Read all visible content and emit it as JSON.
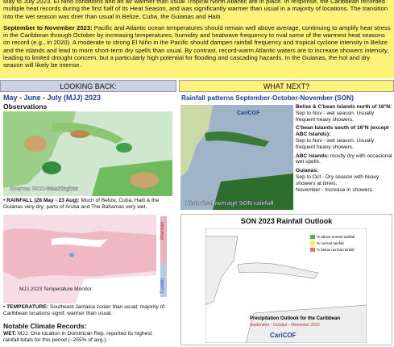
{
  "intro": {
    "text": "May to July 2023. El Niño conditions and an air warmer than usual Tropical North Atlantic are in place. In response, the Caribbean recorded multiple heat records during the first half of its Heat Season, and was significantly warmer than usual in a majority of locations. The transition into the wet season was drier than usual in Belize, Cuba, the Guianas and Haiti."
  },
  "outlook": {
    "heading": "September to November 2023:",
    "text": "Pacific and Atlantic ocean temperatures should remain well above average, continuing to amplify heat stress in the Caribbean through October by increasing temperatures, humidity and heatwave frequency to rival some of the warmest heat seasons on record (e.g., in 2020). A moderate to strong El Niño in the Pacific should dampen rainfall frequency and tropical cyclone intensity in Belize and the islands and lead to more short-term dry spells than usual. By contrast, record-warm Atlantic waters are to increase showers intensity, leading to limited drought concern, but a particularly high potential for flooding and cascading hazards. In the Guianas, the hot and dry season will likely be intense."
  },
  "looking_back": {
    "header": "LOOKING BACK:",
    "period": "May - June - July (MJJ) 2023",
    "subtitle": "Observations",
    "map_source": "Source: RCC-Washington",
    "rainfall": {
      "label": "RAINFALL (28 May - 23 Aug):",
      "text": "Much of Belize, Cuba, Haiti & the Guianas very dry; parts of Aruba and The Bahamas very wet."
    },
    "temp_map": {
      "warmer": "Warmer",
      "cooler": "Cooler",
      "caption": "MJJ 2023 Temperature Monitor"
    },
    "temperature": {
      "label": "TEMPERATURE:",
      "text": "Southeast Jamaica cooler than usual; majority of Caribbean locations signif. warmer than usual."
    },
    "records_title": "Notable Climate Records:",
    "records": [
      {
        "label": "WET:",
        "text": "MJJ: One location in Dominican Rep. reported its highest rainfall totals for this period (~255% of avg.)."
      }
    ]
  },
  "what_next": {
    "header": "WHAT NEXT?",
    "title": "Rainfall patterns September-October-November (SON)",
    "map_caption": "Historical average SON rainfall",
    "logo": "CariCOF",
    "regions": [
      {
        "name": "Belize & C'bean Islands north of 16°N:",
        "lines": [
          "Sep to Nov - wet season. Usually frequent heavy showers."
        ]
      },
      {
        "name": "C'bean Islands south of 16°N (except ABC Islands):",
        "lines": [
          "Sep to Nov - wet season. Usually frequent heavy showers."
        ]
      },
      {
        "name": "ABC Islands:",
        "lines": [
          "mostly dry with occasional wet spells."
        ]
      },
      {
        "name": "Guianas:",
        "lines": [
          "Sep to Oct - Dry season with heavy showers at times.",
          "November - Increase in showers."
        ]
      }
    ],
    "outlook_title": "SON 2023 Rainfall Outlook",
    "legend": [
      "% above normal rainfall",
      "% normal rainfall",
      "% below normal rainfall"
    ],
    "outlook_caption": "Precipitation Outlook for the Caribbean",
    "outlook_period": "September - October - November 2023",
    "outlook_logo": "CariCOF"
  }
}
